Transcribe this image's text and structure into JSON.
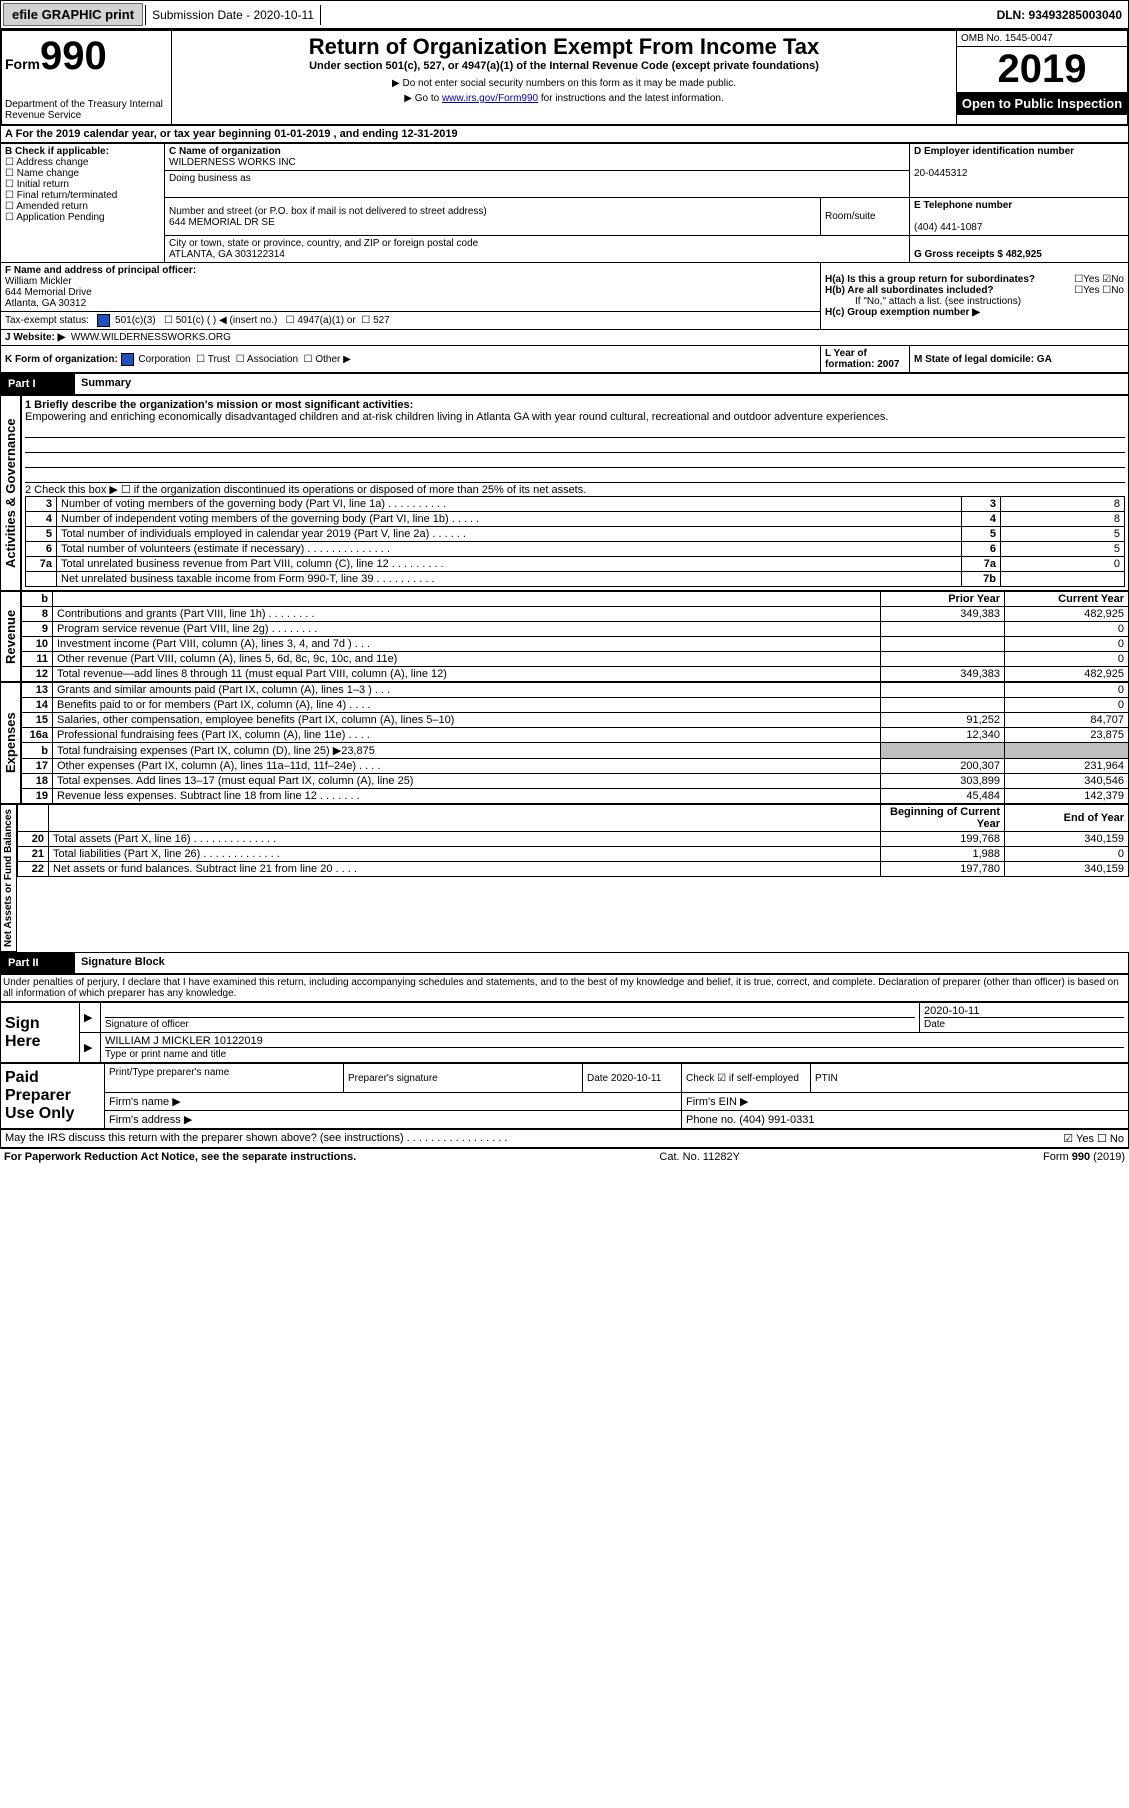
{
  "topbar": {
    "efile": "efile GRAPHIC print",
    "submission_label": "Submission Date - 2020-10-11",
    "dln_label": "DLN: 93493285003040"
  },
  "header": {
    "form_label": "Form",
    "form_no": "990",
    "dept": "Department of the Treasury\nInternal Revenue Service",
    "title": "Return of Organization Exempt From Income Tax",
    "subtitle": "Under section 501(c), 527, or 4947(a)(1) of the Internal Revenue Code (except private foundations)",
    "note1": "Do not enter social security numbers on this form as it may be made public.",
    "note2_pre": "Go to ",
    "note2_link": "www.irs.gov/Form990",
    "note2_post": " for instructions and the latest information.",
    "omb": "OMB No. 1545-0047",
    "year": "2019",
    "openpub": "Open to Public Inspection"
  },
  "periodA": "For the 2019 calendar year, or tax year beginning 01-01-2019    , and ending 12-31-2019",
  "boxB": {
    "label": "B Check if applicable:",
    "items": [
      "Address change",
      "Name change",
      "Initial return",
      "Final return/terminated",
      "Amended return",
      "Application Pending"
    ]
  },
  "boxC": {
    "name_label": "C Name of organization",
    "name": "WILDERNESS WORKS INC",
    "dba_label": "Doing business as",
    "addr_label": "Number and street (or P.O. box if mail is not delivered to street address)",
    "room_label": "Room/suite",
    "addr": "644 MEMORIAL DR SE",
    "city_label": "City or town, state or province, country, and ZIP or foreign postal code",
    "city": "ATLANTA, GA   303122314"
  },
  "boxD": {
    "label": "D Employer identification number",
    "val": "20-0445312"
  },
  "boxE": {
    "label": "E Telephone number",
    "val": "(404) 441-1087"
  },
  "boxG": {
    "label": "G Gross receipts $ 482,925"
  },
  "boxF": {
    "label": "F  Name and address of principal officer:",
    "name": "William Mickler",
    "addr1": "644 Memorial Drive",
    "addr2": "Atlanta, GA  30312"
  },
  "boxH": {
    "a_label": "H(a)  Is this a group return for subordinates?",
    "a_opts": "Yes   No",
    "b_label": "H(b)  Are all subordinates included?",
    "b_opts": "Yes   No",
    "b_note": "If \"No,\" attach a list. (see instructions)",
    "c_label": "H(c)  Group exemption number ▶"
  },
  "taxexempt": {
    "label": "Tax-exempt status:",
    "c3": "501(c)(3)",
    "c": "501(c) (  ) ◀ (insert no.)",
    "a1": "4947(a)(1) or",
    "s527": "527"
  },
  "boxJ": {
    "label": "Website: ▶",
    "val": "WWW.WILDERNESSWORKS.ORG"
  },
  "boxK": {
    "label": "K Form of organization:",
    "corp": "Corporation",
    "trust": "Trust",
    "assoc": "Association",
    "other": "Other ▶"
  },
  "boxL": {
    "label": "L Year of formation: 2007"
  },
  "boxM": {
    "label": "M State of legal domicile: GA"
  },
  "part1": {
    "bar": "Part I",
    "title": "Summary"
  },
  "mission": {
    "q": "1  Briefly describe the organization's mission or most significant activities:",
    "a": "Empowering and enriching economically disadvantaged children and at-risk children living in Atlanta GA with year round cultural, recreational and outdoor adventure experiences."
  },
  "line2": "2   Check this box ▶ ☐  if the organization discontinued its operations or disposed of more than 25% of its net assets.",
  "gov_rows": [
    {
      "n": "3",
      "t": "Number of voting members of the governing body (Part VI, line 1a)   .   .   .   .   .   .   .   .   .   .",
      "box": "3",
      "v": "8"
    },
    {
      "n": "4",
      "t": "Number of independent voting members of the governing body (Part VI, line 1b)  .   .   .   .   .",
      "box": "4",
      "v": "8"
    },
    {
      "n": "5",
      "t": "Total number of individuals employed in calendar year 2019 (Part V, line 2a)  .   .   .   .   .   .",
      "box": "5",
      "v": "5"
    },
    {
      "n": "6",
      "t": "Total number of volunteers (estimate if necessary)     .   .   .   .   .   .   .   .   .   .   .   .   .   .",
      "box": "6",
      "v": "5"
    },
    {
      "n": "7a",
      "t": "Total unrelated business revenue from Part VIII, column (C), line 12   .   .   .   .   .   .   .   .   .",
      "box": "7a",
      "v": "0"
    },
    {
      "n": "",
      "t": "Net unrelated business taxable income from Form 990-T, line 39    .   .   .   .   .   .   .   .   .   .",
      "box": "7b",
      "v": ""
    }
  ],
  "colhdr": {
    "prior": "Prior Year",
    "current": "Current Year"
  },
  "rev_rows": [
    {
      "n": "8",
      "t": "Contributions and grants (Part VIII, line 1h)    .   .   .   .   .   .   .   .",
      "p": "349,383",
      "c": "482,925"
    },
    {
      "n": "9",
      "t": "Program service revenue (Part VIII, line 2g)   .   .   .   .   .   .   .   .",
      "p": "",
      "c": "0"
    },
    {
      "n": "10",
      "t": "Investment income (Part VIII, column (A), lines 3, 4, and 7d )   .   .   .",
      "p": "",
      "c": "0"
    },
    {
      "n": "11",
      "t": "Other revenue (Part VIII, column (A), lines 5, 6d, 8c, 9c, 10c, and 11e)",
      "p": "",
      "c": "0"
    },
    {
      "n": "12",
      "t": "Total revenue—add lines 8 through 11 (must equal Part VIII, column (A), line 12)",
      "p": "349,383",
      "c": "482,925"
    }
  ],
  "exp_rows": [
    {
      "n": "13",
      "t": "Grants and similar amounts paid (Part IX, column (A), lines 1–3 )   .   .   .",
      "p": "",
      "c": "0"
    },
    {
      "n": "14",
      "t": "Benefits paid to or for members (Part IX, column (A), line 4)   .   .   .   .",
      "p": "",
      "c": "0"
    },
    {
      "n": "15",
      "t": "Salaries, other compensation, employee benefits (Part IX, column (A), lines 5–10)",
      "p": "91,252",
      "c": "84,707"
    },
    {
      "n": "16a",
      "t": "Professional fundraising fees (Part IX, column (A), line 11e)    .   .   .   .",
      "p": "12,340",
      "c": "23,875"
    },
    {
      "n": "b",
      "t": "Total fundraising expenses (Part IX, column (D), line 25) ▶23,875",
      "p": "shaded",
      "c": "shaded"
    },
    {
      "n": "17",
      "t": "Other expenses (Part IX, column (A), lines 11a–11d, 11f–24e)   .   .   .   .",
      "p": "200,307",
      "c": "231,964"
    },
    {
      "n": "18",
      "t": "Total expenses. Add lines 13–17 (must equal Part IX, column (A), line 25)",
      "p": "303,899",
      "c": "340,546"
    },
    {
      "n": "19",
      "t": "Revenue less expenses. Subtract line 18 from line 12  .   .   .   .   .   .   .",
      "p": "45,484",
      "c": "142,379"
    }
  ],
  "colhdr2": {
    "prior": "Beginning of Current Year",
    "current": "End of Year"
  },
  "net_rows": [
    {
      "n": "20",
      "t": "Total assets (Part X, line 16)  .   .   .   .   .   .   .   .   .   .   .   .   .   .",
      "p": "199,768",
      "c": "340,159"
    },
    {
      "n": "21",
      "t": "Total liabilities (Part X, line 26)  .   .   .   .   .   .   .   .   .   .   .   .   .",
      "p": "1,988",
      "c": "0"
    },
    {
      "n": "22",
      "t": "Net assets or fund balances. Subtract line 21 from line 20   .   .   .   .",
      "p": "197,780",
      "c": "340,159"
    }
  ],
  "sidebars": {
    "gov": "Activities & Governance",
    "rev": "Revenue",
    "exp": "Expenses",
    "net": "Net Assets or Fund Balances"
  },
  "part2": {
    "bar": "Part II",
    "title": "Signature Block"
  },
  "penalties": "Under penalties of perjury, I declare that I have examined this return, including accompanying schedules and statements, and to the best of my knowledge and belief, it is true, correct, and complete. Declaration of preparer (other than officer) is based on all information of which preparer has any knowledge.",
  "sign": {
    "here": "Sign Here",
    "sig_label": "Signature of officer",
    "date_val": "2020-10-11",
    "date_label": "Date",
    "name_val": "WILLIAM J MICKLER  10122019",
    "name_label": "Type or print name and title"
  },
  "paid": {
    "title": "Paid Preparer Use Only",
    "col1": "Print/Type preparer's name",
    "col2": "Preparer's signature",
    "col3": "Date\n2020-10-11",
    "col4": "Check ☑ if self-employed",
    "col5": "PTIN",
    "firm_name": "Firm's name     ▶",
    "firm_ein": "Firm's EIN ▶",
    "firm_addr": "Firm's address ▶",
    "phone": "Phone no. (404) 991-0331"
  },
  "discuss": "May the IRS discuss this return with the preparer shown above? (see instructions)   .   .   .   .   .   .   .   .   .   .   .   .   .   .   .   .   .",
  "discuss_opts": "☑ Yes   ☐ No",
  "footer": {
    "left": "For Paperwork Reduction Act Notice, see the separate instructions.",
    "mid": "Cat. No. 11282Y",
    "right": "Form 990 (2019)"
  },
  "colors": {
    "link": "#0000cc",
    "shaded": "#bfbfbf",
    "checked": "#2050c0"
  }
}
